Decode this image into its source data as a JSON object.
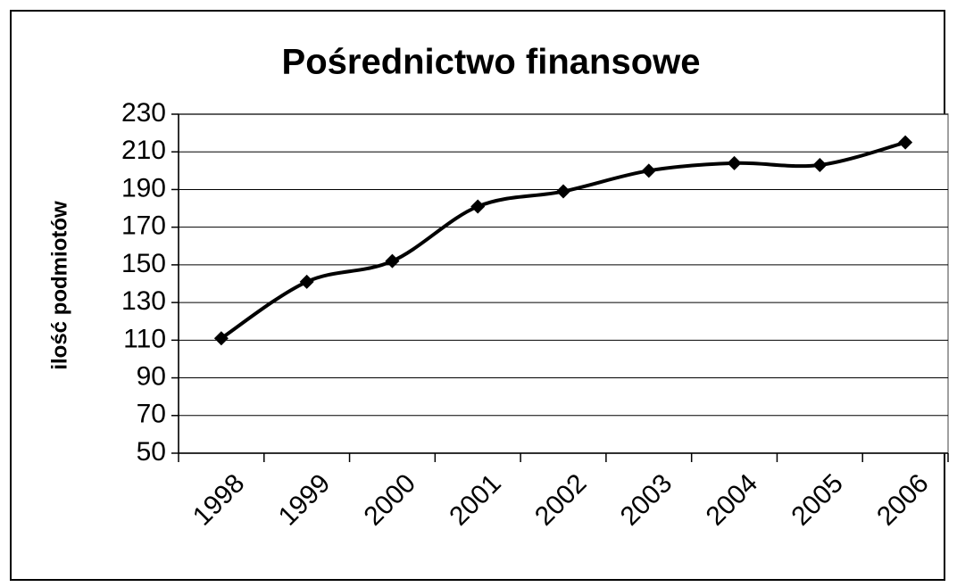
{
  "chart_data": {
    "type": "line",
    "title": "Pośrednictwo finansowe",
    "ylabel": "ilość podmiotów",
    "categories": [
      "1998",
      "1999",
      "2000",
      "2001",
      "2002",
      "2003",
      "2004",
      "2005",
      "2006"
    ],
    "series": [
      {
        "name": "ilość podmiotów",
        "color": "#000000",
        "values": [
          111,
          141,
          152,
          181,
          189,
          200,
          204,
          203,
          215
        ]
      }
    ],
    "ylim": [
      50,
      230
    ],
    "yticks": [
      50,
      70,
      90,
      110,
      130,
      150,
      170,
      190,
      210,
      230
    ],
    "grid": true,
    "smooth": true
  }
}
